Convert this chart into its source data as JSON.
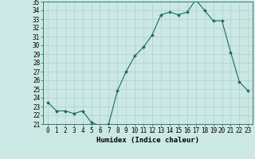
{
  "x": [
    0,
    1,
    2,
    3,
    4,
    5,
    6,
    7,
    8,
    9,
    10,
    11,
    12,
    13,
    14,
    15,
    16,
    17,
    18,
    19,
    20,
    21,
    22,
    23
  ],
  "y": [
    23.5,
    22.5,
    22.5,
    22.2,
    22.5,
    21.2,
    20.8,
    21.0,
    24.8,
    27.0,
    28.8,
    29.8,
    31.2,
    33.5,
    33.8,
    33.5,
    33.8,
    35.2,
    34.0,
    32.8,
    32.8,
    29.2,
    25.8,
    24.8
  ],
  "line_color": "#1a6b5e",
  "marker": "D",
  "marker_size": 2.0,
  "bg_color": "#cce8e4",
  "grid_color": "#aad0cc",
  "axis_color": "#1a6b5e",
  "xlabel": "Humidex (Indice chaleur)",
  "ylim": [
    21,
    35
  ],
  "xlim_min": -0.5,
  "xlim_max": 23.5,
  "yticks": [
    21,
    22,
    23,
    24,
    25,
    26,
    27,
    28,
    29,
    30,
    31,
    32,
    33,
    34,
    35
  ],
  "xticks": [
    0,
    1,
    2,
    3,
    4,
    5,
    6,
    7,
    8,
    9,
    10,
    11,
    12,
    13,
    14,
    15,
    16,
    17,
    18,
    19,
    20,
    21,
    22,
    23
  ],
  "tick_fontsize": 5.5,
  "xlabel_fontsize": 6.5,
  "linewidth": 0.8
}
